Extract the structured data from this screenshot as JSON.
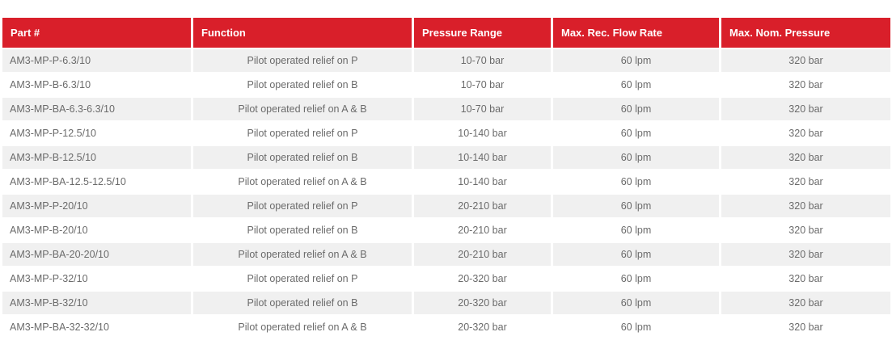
{
  "colors": {
    "header_bg": "#d91f2a",
    "header_text": "#ffffff",
    "row_alt_bg": "#f0f0f0",
    "text": "#6b6b6b"
  },
  "table": {
    "headers": [
      "Part #",
      "Function",
      "Pressure Range",
      "Max. Rec. Flow Rate",
      "Max. Nom. Pressure"
    ],
    "rows": [
      [
        "AM3-MP-P-6.3/10",
        "Pilot operated relief on P",
        "10-70 bar",
        "60 lpm",
        "320 bar"
      ],
      [
        "AM3-MP-B-6.3/10",
        "Pilot operated relief on B",
        "10-70 bar",
        "60 lpm",
        "320 bar"
      ],
      [
        "AM3-MP-BA-6.3-6.3/10",
        "Pilot operated relief on A & B",
        "10-70 bar",
        "60 lpm",
        "320 bar"
      ],
      [
        "AM3-MP-P-12.5/10",
        "Pilot operated relief on P",
        "10-140 bar",
        "60 lpm",
        "320 bar"
      ],
      [
        "AM3-MP-B-12.5/10",
        "Pilot operated relief on B",
        "10-140 bar",
        "60 lpm",
        "320 bar"
      ],
      [
        "AM3-MP-BA-12.5-12.5/10",
        "Pilot operated relief on A & B",
        "10-140 bar",
        "60 lpm",
        "320 bar"
      ],
      [
        "AM3-MP-P-20/10",
        "Pilot operated relief on P",
        "20-210 bar",
        "60 lpm",
        "320 bar"
      ],
      [
        "AM3-MP-B-20/10",
        "Pilot operated relief on B",
        "20-210 bar",
        "60 lpm",
        "320 bar"
      ],
      [
        "AM3-MP-BA-20-20/10",
        "Pilot operated relief on A & B",
        "20-210 bar",
        "60 lpm",
        "320 bar"
      ],
      [
        "AM3-MP-P-32/10",
        "Pilot operated relief on P",
        "20-320 bar",
        "60 lpm",
        "320 bar"
      ],
      [
        "AM3-MP-B-32/10",
        "Pilot operated relief on B",
        "20-320 bar",
        "60 lpm",
        "320 bar"
      ],
      [
        "AM3-MP-BA-32-32/10",
        "Pilot operated relief on A & B",
        "20-320 bar",
        "60 lpm",
        "320 bar"
      ]
    ]
  }
}
